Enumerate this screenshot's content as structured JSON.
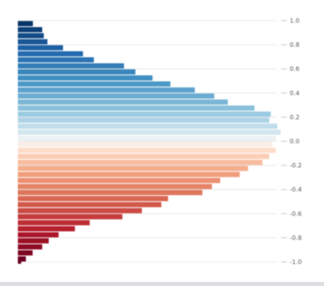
{
  "chart_data": {
    "type": "bar",
    "orientation": "horizontal",
    "value_axis": "x",
    "category_axis": "y",
    "ylim": [
      -1.0,
      1.0
    ],
    "y_ticks": [
      {
        "value": 1.0,
        "label": "1.0"
      },
      {
        "value": 0.8,
        "label": "0.8"
      },
      {
        "value": 0.6,
        "label": "0.6"
      },
      {
        "value": 0.4,
        "label": "0.4"
      },
      {
        "value": 0.2,
        "label": "0.2"
      },
      {
        "value": 0.0,
        "label": "0.0"
      },
      {
        "value": -0.2,
        "label": "-0.2"
      },
      {
        "value": -0.4,
        "label": "-0.4"
      },
      {
        "value": -0.6,
        "label": "-0.6"
      },
      {
        "value": -0.8,
        "label": "-0.8"
      },
      {
        "value": -1.0,
        "label": "-1.0"
      }
    ],
    "xlim": [
      0,
      100
    ],
    "grid": true,
    "legend": "none",
    "colormap": {
      "low": "#67001f",
      "mid": "#f7f7f7",
      "high": "#053061"
    },
    "bins": [
      {
        "y": 0.975,
        "value": 5.8
      },
      {
        "y": 0.925,
        "value": 9.4
      },
      {
        "y": 0.875,
        "value": 10.0
      },
      {
        "y": 0.825,
        "value": 11.4
      },
      {
        "y": 0.775,
        "value": 17.4
      },
      {
        "y": 0.725,
        "value": 25.1
      },
      {
        "y": 0.675,
        "value": 29.3
      },
      {
        "y": 0.625,
        "value": 40.9
      },
      {
        "y": 0.575,
        "value": 45.3
      },
      {
        "y": 0.525,
        "value": 51.9
      },
      {
        "y": 0.475,
        "value": 58.8
      },
      {
        "y": 0.425,
        "value": 68.2
      },
      {
        "y": 0.375,
        "value": 75.7
      },
      {
        "y": 0.325,
        "value": 80.9
      },
      {
        "y": 0.275,
        "value": 91.2
      },
      {
        "y": 0.225,
        "value": 97.5
      },
      {
        "y": 0.175,
        "value": 96.9
      },
      {
        "y": 0.125,
        "value": 100.0
      },
      {
        "y": 0.075,
        "value": 101.3
      },
      {
        "y": 0.025,
        "value": 99.4
      },
      {
        "y": -0.025,
        "value": 98.1
      },
      {
        "y": -0.075,
        "value": 99.4
      },
      {
        "y": -0.125,
        "value": 96.9
      },
      {
        "y": -0.175,
        "value": 94.3
      },
      {
        "y": -0.225,
        "value": 88.7
      },
      {
        "y": -0.275,
        "value": 85.5
      },
      {
        "y": -0.325,
        "value": 78.0
      },
      {
        "y": -0.375,
        "value": 74.8
      },
      {
        "y": -0.425,
        "value": 71.1
      },
      {
        "y": -0.475,
        "value": 57.9
      },
      {
        "y": -0.525,
        "value": 55.3
      },
      {
        "y": -0.575,
        "value": 47.8
      },
      {
        "y": -0.625,
        "value": 40.3
      },
      {
        "y": -0.675,
        "value": 27.7
      },
      {
        "y": -0.725,
        "value": 22.0
      },
      {
        "y": -0.775,
        "value": 15.7
      },
      {
        "y": -0.825,
        "value": 11.9
      },
      {
        "y": -0.875,
        "value": 9.4
      },
      {
        "y": -0.925,
        "value": 5.7
      },
      {
        "y": -0.975,
        "value": 3.1
      },
      {
        "y": -1.0,
        "value": 1.3
      }
    ]
  }
}
